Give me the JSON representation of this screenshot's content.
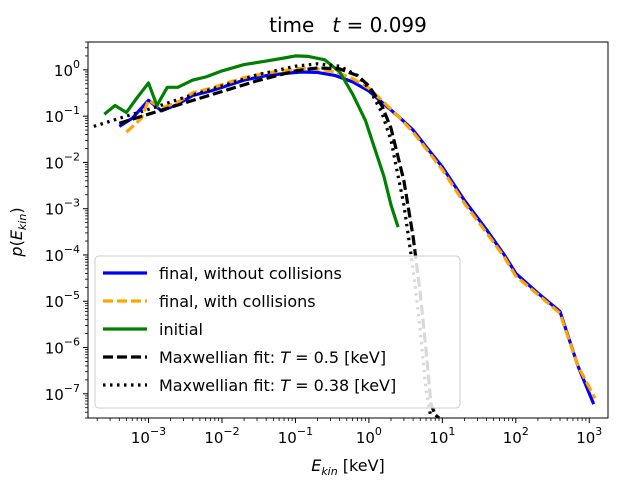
{
  "chart_data": {
    "type": "line",
    "title": "time   t = 0.099",
    "title_parts": {
      "prefix": "time",
      "var": "t",
      "eq": " = 0.099"
    },
    "xlabel": "E_kin [keV]",
    "ylabel": "p(E_kin)",
    "xscale": "log",
    "yscale": "log",
    "xlim": [
      0.00015,
      1800
    ],
    "ylim": [
      3e-08,
      4
    ],
    "x_ticks": [
      {
        "value": 0.001,
        "mant": "10",
        "exp": "−3"
      },
      {
        "value": 0.01,
        "mant": "10",
        "exp": "−2"
      },
      {
        "value": 0.1,
        "mant": "10",
        "exp": "−1"
      },
      {
        "value": 1,
        "mant": "10",
        "exp": "0"
      },
      {
        "value": 10,
        "mant": "10",
        "exp": "1"
      },
      {
        "value": 100,
        "mant": "10",
        "exp": "2"
      },
      {
        "value": 1000,
        "mant": "10",
        "exp": "3"
      }
    ],
    "y_ticks": [
      {
        "value": 1e-07,
        "mant": "10",
        "exp": "−7"
      },
      {
        "value": 1e-06,
        "mant": "10",
        "exp": "−6"
      },
      {
        "value": 1e-05,
        "mant": "10",
        "exp": "−5"
      },
      {
        "value": 0.0001,
        "mant": "10",
        "exp": "−4"
      },
      {
        "value": 0.001,
        "mant": "10",
        "exp": "−3"
      },
      {
        "value": 0.01,
        "mant": "10",
        "exp": "−2"
      },
      {
        "value": 0.1,
        "mant": "10",
        "exp": "−1"
      },
      {
        "value": 1,
        "mant": "10",
        "exp": "0"
      }
    ],
    "legend_location": "lower-left",
    "series": [
      {
        "name": "final, without collisions",
        "color": "#0000ff",
        "style": "solid",
        "x": [
          0.0004,
          0.0006,
          0.001,
          0.0015,
          0.0025,
          0.004,
          0.007,
          0.01,
          0.02,
          0.04,
          0.08,
          0.12,
          0.2,
          0.35,
          0.6,
          1,
          1.5,
          2.5,
          4,
          6,
          10,
          20,
          40,
          70,
          100,
          200,
          400,
          700,
          1150
        ],
        "y": [
          0.06,
          0.09,
          0.22,
          0.13,
          0.18,
          0.28,
          0.35,
          0.42,
          0.6,
          0.75,
          0.85,
          0.9,
          0.88,
          0.75,
          0.55,
          0.35,
          0.2,
          0.1,
          0.05,
          0.022,
          0.008,
          0.0015,
          0.00035,
          0.0001,
          4e-05,
          1.5e-05,
          6e-06,
          4e-07,
          6e-08
        ]
      },
      {
        "name": "final, with collisions",
        "color": "#ffa500",
        "style": "dashed",
        "x": [
          0.0005,
          0.0008,
          0.001,
          0.0015,
          0.0025,
          0.004,
          0.007,
          0.01,
          0.02,
          0.04,
          0.08,
          0.12,
          0.2,
          0.35,
          0.6,
          1,
          1.5,
          2.5,
          4,
          6,
          10,
          20,
          40,
          70,
          100,
          200,
          400,
          700,
          1200
        ],
        "y": [
          0.045,
          0.09,
          0.22,
          0.15,
          0.2,
          0.32,
          0.4,
          0.48,
          0.68,
          0.85,
          1.0,
          1.08,
          1.05,
          0.9,
          0.65,
          0.4,
          0.22,
          0.1,
          0.045,
          0.02,
          0.007,
          0.0013,
          0.0003,
          9e-05,
          3.5e-05,
          1.4e-05,
          5.5e-06,
          4e-07,
          8e-08
        ]
      },
      {
        "name": "initial",
        "color": "#008000",
        "style": "solid",
        "x": [
          0.00025,
          0.00035,
          0.0005,
          0.0007,
          0.001,
          0.0013,
          0.0018,
          0.0025,
          0.004,
          0.006,
          0.01,
          0.02,
          0.04,
          0.07,
          0.1,
          0.15,
          0.25,
          0.4,
          0.6,
          0.9,
          1.2,
          1.6,
          2,
          2.5
        ],
        "y": [
          0.11,
          0.17,
          0.12,
          0.25,
          0.52,
          0.17,
          0.42,
          0.42,
          0.6,
          0.7,
          0.95,
          1.3,
          1.55,
          1.8,
          2.0,
          1.95,
          1.65,
          0.9,
          0.3,
          0.08,
          0.02,
          0.005,
          0.0012,
          0.0004
        ]
      },
      {
        "name": "Maxwellian fit: T = 0.5 [keV]",
        "label_prefix": "Maxwellian fit: ",
        "label_var": "T",
        "label_value": " =  0.5 [keV]",
        "color": "#000000",
        "style": "dashed",
        "T": 0.5,
        "x": [
          0.0004,
          0.001,
          0.003,
          0.01,
          0.03,
          0.1,
          0.2,
          0.4,
          0.7,
          1,
          1.5,
          2,
          3,
          4,
          5,
          6,
          7,
          8,
          9
        ],
        "y": [
          0.07,
          0.11,
          0.19,
          0.34,
          0.58,
          0.95,
          1.1,
          1.05,
          0.75,
          0.45,
          0.17,
          0.055,
          0.004,
          0.00025,
          1.5e-05,
          9e-07,
          6e-08,
          3.5e-08,
          3e-08
        ]
      },
      {
        "name": "Maxwellian fit: T = 0.38 [keV]",
        "label_prefix": "Maxwellian fit: ",
        "label_var": "T",
        "label_value": " =  0.38 [keV]",
        "color": "#000000",
        "style": "dotted",
        "T": 0.38,
        "x": [
          0.00018,
          0.0005,
          0.001,
          0.003,
          0.01,
          0.03,
          0.1,
          0.2,
          0.4,
          0.7,
          1,
          1.5,
          2,
          3,
          4,
          5,
          6,
          7
        ],
        "y": [
          0.06,
          0.1,
          0.14,
          0.25,
          0.45,
          0.78,
          1.2,
          1.35,
          1.2,
          0.75,
          0.4,
          0.12,
          0.03,
          0.0012,
          5e-05,
          2.5e-06,
          1.2e-07,
          3e-08
        ]
      }
    ]
  }
}
